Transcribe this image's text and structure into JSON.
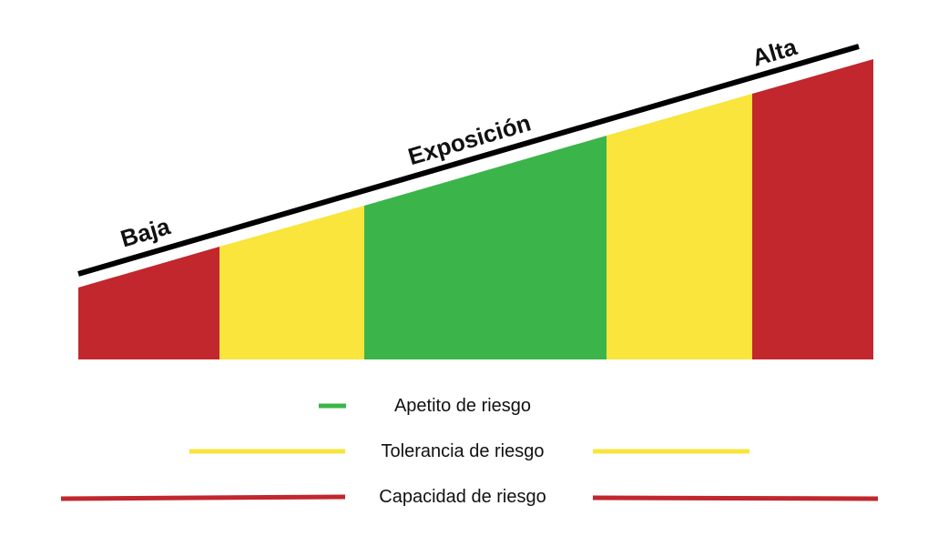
{
  "diagram": {
    "axis_labels": {
      "low": "Baja",
      "middle": "Exposición",
      "high": "Alta"
    },
    "bands": [
      {
        "level": "capacidad",
        "color": "#c1272d"
      },
      {
        "level": "tolerancia",
        "color": "#f9e53b"
      },
      {
        "level": "apetito",
        "color": "#3bb54a"
      },
      {
        "level": "tolerancia",
        "color": "#f9e53b"
      },
      {
        "level": "capacidad",
        "color": "#c1272d"
      }
    ],
    "line_color": "#000000"
  },
  "legend": {
    "appetite": {
      "label": "Apetito de riesgo",
      "color": "#3bb54a"
    },
    "tolerance": {
      "label": "Tolerancia de riesgo",
      "color": "#f9e53b"
    },
    "capacity": {
      "label": "Capacidad de riesgo",
      "color": "#c1272d"
    }
  }
}
